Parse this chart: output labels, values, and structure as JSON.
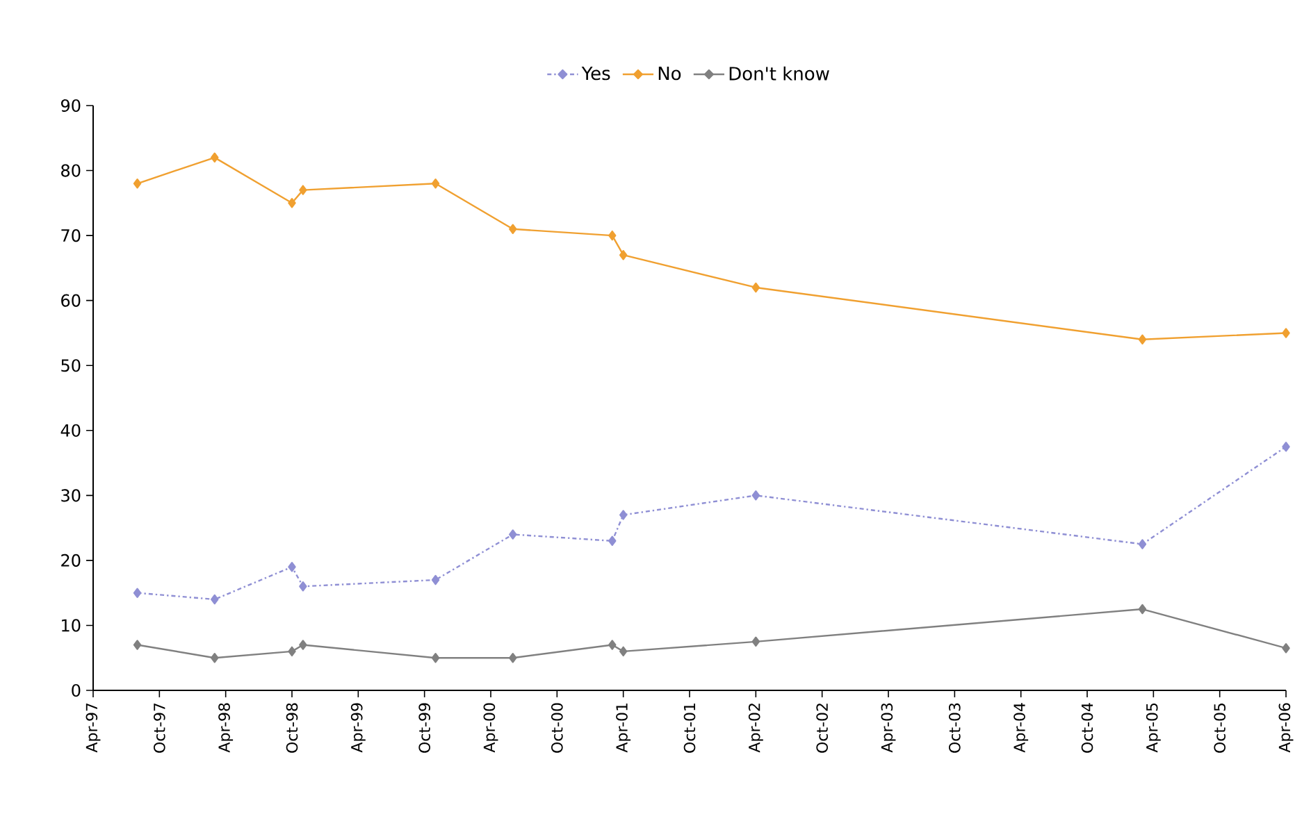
{
  "chart_data": {
    "type": "line",
    "x": [
      "1997-08",
      "1998-03",
      "1998-10",
      "1998-11",
      "1999-11",
      "2000-06",
      "2001-03",
      "2001-04",
      "2002-04",
      "2005-03",
      "2006-04"
    ],
    "series": [
      {
        "name": "Yes",
        "color": "#8f8fd4",
        "line_style": "dashed",
        "values": [
          15,
          14,
          19,
          16,
          17,
          24,
          23,
          27,
          30,
          22.5,
          37.5
        ]
      },
      {
        "name": "No",
        "color": "#f0a030",
        "line_style": "solid",
        "values": [
          78,
          82,
          75,
          77,
          78,
          71,
          70,
          67,
          62,
          54,
          55
        ]
      },
      {
        "name": "Don't know",
        "color": "#808080",
        "line_style": "solid",
        "values": [
          7,
          5,
          6,
          7,
          5,
          5,
          7,
          6,
          7.5,
          12.5,
          6.5
        ]
      }
    ],
    "xlim": [
      "1997-04",
      "2006-04"
    ],
    "xticks": [
      {
        "value": "1997-04",
        "label": "Apr-97"
      },
      {
        "value": "1997-10",
        "label": "Oct-97"
      },
      {
        "value": "1998-04",
        "label": "Apr-98"
      },
      {
        "value": "1998-10",
        "label": "Oct-98"
      },
      {
        "value": "1999-04",
        "label": "Apr-99"
      },
      {
        "value": "1999-10",
        "label": "Oct-99"
      },
      {
        "value": "2000-04",
        "label": "Apr-00"
      },
      {
        "value": "2000-10",
        "label": "Oct-00"
      },
      {
        "value": "2001-04",
        "label": "Apr-01"
      },
      {
        "value": "2001-10",
        "label": "Oct-01"
      },
      {
        "value": "2002-04",
        "label": "Apr-02"
      },
      {
        "value": "2002-10",
        "label": "Oct-02"
      },
      {
        "value": "2003-04",
        "label": "Apr-03"
      },
      {
        "value": "2003-10",
        "label": "Oct-03"
      },
      {
        "value": "2004-04",
        "label": "Apr-04"
      },
      {
        "value": "2004-10",
        "label": "Oct-04"
      },
      {
        "value": "2005-04",
        "label": "Apr-05"
      },
      {
        "value": "2005-10",
        "label": "Oct-05"
      },
      {
        "value": "2006-04",
        "label": "Apr-06"
      }
    ],
    "ylim": [
      0,
      90
    ],
    "yticks": [
      0,
      10,
      20,
      30,
      40,
      50,
      60,
      70,
      80,
      90
    ],
    "grid": false,
    "legend": "top",
    "marker": "diamond"
  }
}
